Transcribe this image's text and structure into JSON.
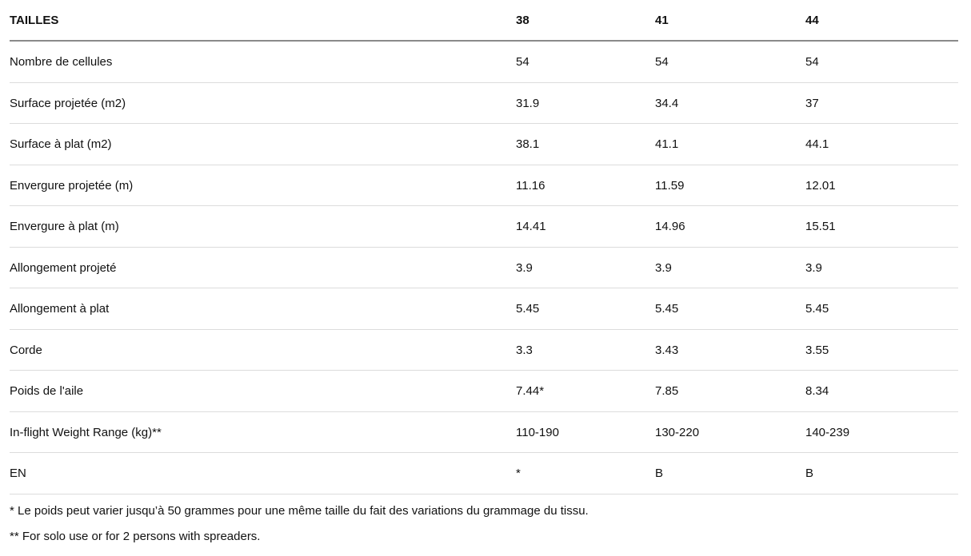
{
  "table": {
    "header": [
      "TAILLES",
      "38",
      "41",
      "44"
    ],
    "rows": [
      [
        "Nombre de cellules",
        "54",
        "54",
        "54"
      ],
      [
        "Surface projetée (m2)",
        "31.9",
        "34.4",
        "37"
      ],
      [
        "Surface à plat (m2)",
        "38.1",
        "41.1",
        "44.1"
      ],
      [
        "Envergure projetée (m)",
        "11.16",
        "11.59",
        "12.01"
      ],
      [
        "Envergure à plat (m)",
        "14.41",
        "14.96",
        "15.51"
      ],
      [
        "Allongement projeté",
        "3.9",
        "3.9",
        "3.9"
      ],
      [
        "Allongement à plat",
        "5.45",
        "5.45",
        "5.45"
      ],
      [
        "Corde",
        "3.3",
        "3.43",
        "3.55"
      ],
      [
        "Poids de l'aile",
        "7.44*",
        "7.85",
        "8.34"
      ],
      [
        "In-flight Weight Range (kg)**",
        "110-190",
        "130-220",
        "140-239"
      ],
      [
        "EN",
        "*",
        "B",
        "B"
      ]
    ]
  },
  "footnotes": [
    "* Le poids peut varier jusqu’à 50 grammes pour une même taille du fait des variations du grammage du tissu.",
    "** For solo use or for 2 persons with spreaders."
  ]
}
